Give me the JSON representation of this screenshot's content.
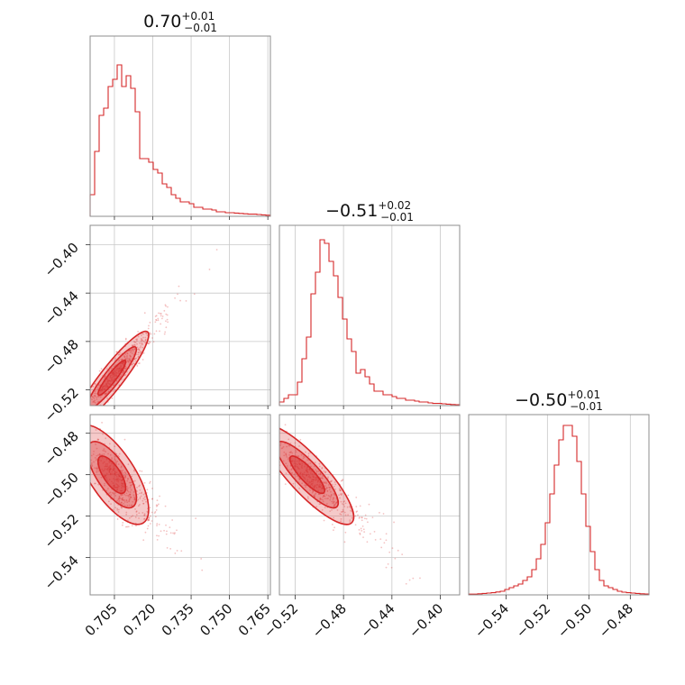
{
  "chart_data": {
    "type": "corner",
    "color": "#d62728",
    "parameters": [
      {
        "title_value": "0.70",
        "title_upper": "+0.01",
        "title_lower": "−0.01",
        "range": [
          0.6955,
          0.766
        ],
        "ticks": [
          0.705,
          0.72,
          0.735,
          0.75,
          0.765
        ],
        "tick_labels": [
          "0.705",
          "0.720",
          "0.735",
          "0.750",
          "0.765"
        ],
        "histogram": [
          0.12,
          0.36,
          0.56,
          0.6,
          0.72,
          0.76,
          0.84,
          0.72,
          0.78,
          0.71,
          0.58,
          0.32,
          0.32,
          0.3,
          0.26,
          0.24,
          0.18,
          0.16,
          0.12,
          0.1,
          0.08,
          0.08,
          0.07,
          0.05,
          0.05,
          0.04,
          0.04,
          0.035,
          0.025,
          0.025,
          0.02,
          0.02,
          0.018,
          0.016,
          0.014,
          0.012,
          0.012,
          0.01,
          0.008,
          0.006
        ]
      },
      {
        "title_value": "−0.51",
        "title_upper": "+0.02",
        "title_lower": "−0.01",
        "range": [
          -0.533,
          -0.384
        ],
        "ticks": [
          -0.52,
          -0.48,
          -0.44,
          -0.4
        ],
        "tick_labels": [
          "−0.52",
          "−0.48",
          "−0.44",
          "−0.40"
        ],
        "histogram": [
          0.02,
          0.04,
          0.06,
          0.06,
          0.13,
          0.26,
          0.38,
          0.62,
          0.74,
          0.92,
          0.9,
          0.8,
          0.72,
          0.6,
          0.48,
          0.37,
          0.3,
          0.18,
          0.2,
          0.16,
          0.12,
          0.08,
          0.08,
          0.06,
          0.06,
          0.05,
          0.04,
          0.04,
          0.03,
          0.03,
          0.025,
          0.02,
          0.02,
          0.015,
          0.012,
          0.012,
          0.01,
          0.008,
          0.006,
          0.005
        ]
      },
      {
        "title_value": "−0.50",
        "title_upper": "+0.01",
        "title_lower": "−0.01",
        "range": [
          -0.558,
          -0.471
        ],
        "ticks": [
          -0.54,
          -0.52,
          -0.5,
          -0.48
        ],
        "tick_labels": [
          "−0.54",
          "−0.52",
          "−0.50",
          "−0.48"
        ],
        "histogram": [
          0.004,
          0.004,
          0.006,
          0.008,
          0.01,
          0.012,
          0.016,
          0.02,
          0.03,
          0.04,
          0.05,
          0.06,
          0.08,
          0.1,
          0.14,
          0.2,
          0.28,
          0.4,
          0.56,
          0.72,
          0.86,
          0.94,
          0.94,
          0.88,
          0.74,
          0.56,
          0.38,
          0.24,
          0.14,
          0.08,
          0.05,
          0.04,
          0.03,
          0.02,
          0.015,
          0.012,
          0.01,
          0.008,
          0.006,
          0.005
        ]
      }
    ],
    "correlations": {
      "1_0": {
        "mean_x": 0.704,
        "mean_y": -0.51,
        "sd_x": 0.006,
        "sd_y": 0.016,
        "rho": 0.92
      },
      "2_0": {
        "mean_x": 0.704,
        "mean_y": -0.5,
        "sd_x": 0.006,
        "sd_y": 0.01,
        "rho": -0.7
      },
      "2_1": {
        "mean_x": -0.51,
        "mean_y": -0.5,
        "sd_x": 0.016,
        "sd_y": 0.01,
        "rho": -0.85
      }
    },
    "grid": true,
    "legend": "none"
  }
}
